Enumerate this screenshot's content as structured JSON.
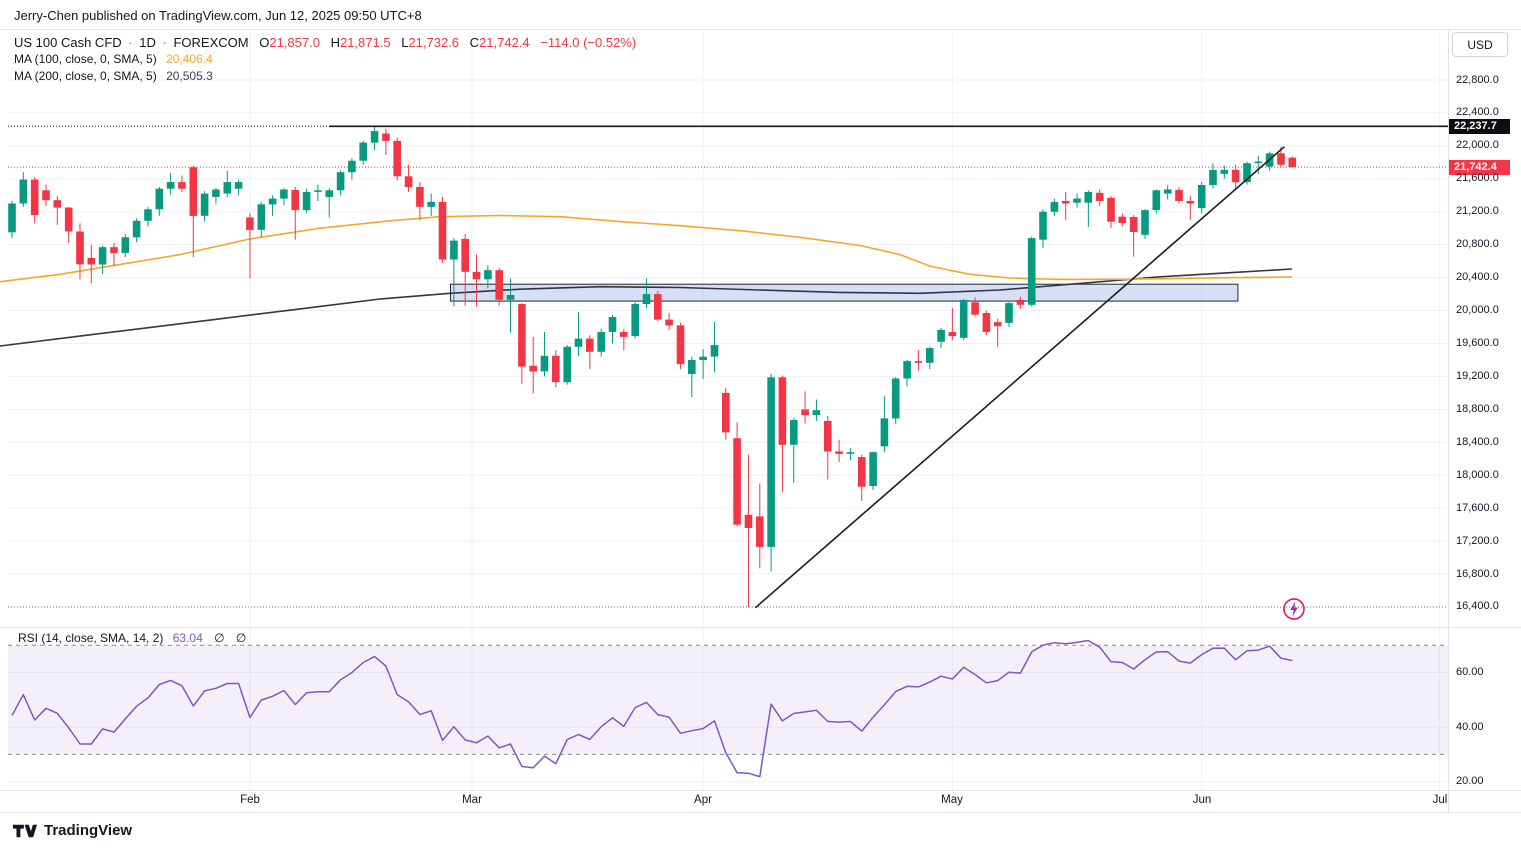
{
  "header": {
    "text": "Jerry-Chen published on TradingView.com, Jun 12, 2025 09:50 UTC+8"
  },
  "legend": {
    "symbol": "US 100 Cash CFD",
    "interval": "1D",
    "exchange": "FOREXCOM",
    "separator": "·",
    "ohlc": {
      "o_label": "O",
      "o": "21,857.0",
      "h_label": "H",
      "h": "21,871.5",
      "l_label": "L",
      "l": "21,732.6",
      "c_label": "C",
      "c": "21,742.4",
      "change": "−114.0 (−0.52%)"
    },
    "ma100_label": "MA (100, close, 0, SMA, 5)",
    "ma100_value": "20,406.4",
    "ma200_label": "MA (200, close, 0, SMA, 5)",
    "ma200_value": "20,505.3"
  },
  "currency_button": {
    "label": "USD"
  },
  "price_axis": {
    "ticks": [
      {
        "label": "22,800.0",
        "value": 22800
      },
      {
        "label": "22,400.0",
        "value": 22400
      },
      {
        "label": "22,000.0",
        "value": 22000
      },
      {
        "label": "21,600.0",
        "value": 21600
      },
      {
        "label": "21,200.0",
        "value": 21200
      },
      {
        "label": "20,800.0",
        "value": 20800
      },
      {
        "label": "20,400.0",
        "value": 20400
      },
      {
        "label": "20,000.0",
        "value": 20000
      },
      {
        "label": "19,600.0",
        "value": 19600
      },
      {
        "label": "19,200.0",
        "value": 19200
      },
      {
        "label": "18,800.0",
        "value": 18800
      },
      {
        "label": "18,400.0",
        "value": 18400
      },
      {
        "label": "18,000.0",
        "value": 18000
      },
      {
        "label": "17,600.0",
        "value": 17600
      },
      {
        "label": "17,200.0",
        "value": 17200
      },
      {
        "label": "16,800.0",
        "value": 16800
      },
      {
        "label": "16,400.0",
        "value": 16400
      }
    ],
    "high_badge": {
      "label": "22,237.7",
      "value": 22237.7,
      "color": "#0c0d12"
    },
    "last_badge": {
      "label": "21,742.4",
      "value": 21742.4,
      "color": "#f23645"
    }
  },
  "rsi_panel": {
    "legend": "RSI (14, close, SMA, 14, 2)",
    "value": "63.04",
    "null1": "∅",
    "null2": "∅",
    "ticks": [
      {
        "label": "60.00",
        "value": 60
      },
      {
        "label": "40.00",
        "value": 40
      },
      {
        "label": "20.00",
        "value": 20
      }
    ],
    "upper_band": 70,
    "lower_band": 30
  },
  "time_axis": {
    "months": [
      {
        "label": "Feb",
        "index": 21
      },
      {
        "label": "Mar",
        "index": 40.6
      },
      {
        "label": "Apr",
        "index": 61
      },
      {
        "label": "May",
        "index": 83
      },
      {
        "label": "Jun",
        "index": 105
      },
      {
        "label": "Jul",
        "index": 126
      }
    ]
  },
  "footer": {
    "logo_text": "TradingView"
  },
  "colors": {
    "up": "#089981",
    "down": "#f23645",
    "ma100": "#f7a62b",
    "ma200": "#33363f",
    "grid": "#eef1f6",
    "rsi_line": "#7e57c2",
    "rsi_band_fill": "rgba(126,87,194,0.09)",
    "rsi_band_edge": "#8a8e9b",
    "box_fill": "rgba(110,140,220,0.28)",
    "box_edge": "#22262f",
    "trend": "#1c1c1c",
    "last_line": "#f23645",
    "high_line": "#131722",
    "low_line": "#787b86",
    "zap": "#d81b60"
  },
  "chart_data": {
    "type": "candlestick",
    "title": "US 100 Cash CFD 1D FOREXCOM",
    "ylabel": "USD",
    "ylim": [
      16200,
      22900
    ],
    "x_range": "Jan 2 2025 - Jun 12 2025, daily",
    "candles": [
      [
        20950,
        21330,
        20880,
        21300
      ],
      [
        21300,
        21680,
        21260,
        21590
      ],
      [
        21590,
        21620,
        21060,
        21160
      ],
      [
        21460,
        21530,
        21270,
        21340
      ],
      [
        21340,
        21390,
        21040,
        21250
      ],
      [
        21250,
        21260,
        20820,
        20960
      ],
      [
        20960,
        21060,
        20380,
        20560
      ],
      [
        20640,
        20800,
        20330,
        20560
      ],
      [
        20560,
        20790,
        20440,
        20770
      ],
      [
        20770,
        20820,
        20540,
        20700
      ],
      [
        20700,
        20930,
        20650,
        20890
      ],
      [
        20890,
        21120,
        20830,
        21090
      ],
      [
        21090,
        21260,
        21020,
        21230
      ],
      [
        21230,
        21500,
        21150,
        21480
      ],
      [
        21480,
        21670,
        21410,
        21560
      ],
      [
        21560,
        21640,
        21440,
        21480
      ],
      [
        21740,
        21760,
        20650,
        21150
      ],
      [
        21150,
        21450,
        21080,
        21420
      ],
      [
        21380,
        21490,
        21300,
        21470
      ],
      [
        21420,
        21700,
        21380,
        21560
      ],
      [
        21480,
        21590,
        21400,
        21560
      ],
      [
        21130,
        21180,
        20390,
        20980
      ],
      [
        20980,
        21320,
        20890,
        21290
      ],
      [
        21290,
        21400,
        21150,
        21360
      ],
      [
        21360,
        21490,
        21280,
        21470
      ],
      [
        21465,
        21500,
        20860,
        21220
      ],
      [
        21220,
        21480,
        21190,
        21440
      ],
      [
        21440,
        21530,
        21330,
        21460
      ],
      [
        21380,
        21490,
        21130,
        21460
      ],
      [
        21460,
        21700,
        21400,
        21680
      ],
      [
        21680,
        21850,
        21590,
        21820
      ],
      [
        21820,
        22060,
        21770,
        22040
      ],
      [
        22040,
        22237.7,
        21950,
        22180
      ],
      [
        22150,
        22210,
        21890,
        22060
      ],
      [
        22060,
        22100,
        21580,
        21630
      ],
      [
        21630,
        21770,
        21440,
        21500
      ],
      [
        21500,
        21560,
        21100,
        21260
      ],
      [
        21260,
        21420,
        21150,
        21320
      ],
      [
        21320,
        21380,
        20580,
        20620
      ],
      [
        20620,
        20880,
        20050,
        20850
      ],
      [
        20870,
        20930,
        20060,
        20470
      ],
      [
        20470,
        20680,
        20050,
        20380
      ],
      [
        20380,
        20550,
        20270,
        20490
      ],
      [
        20490,
        20520,
        20060,
        20130
      ],
      [
        20130,
        20390,
        19730,
        20190
      ],
      [
        20080,
        20090,
        19110,
        19320
      ],
      [
        19330,
        19680,
        18990,
        19260
      ],
      [
        19260,
        19740,
        19200,
        19450
      ],
      [
        19450,
        19520,
        19070,
        19130
      ],
      [
        19130,
        19580,
        19100,
        19560
      ],
      [
        19560,
        19980,
        19450,
        19660
      ],
      [
        19660,
        19700,
        19290,
        19500
      ],
      [
        19500,
        19780,
        19440,
        19740
      ],
      [
        19740,
        19950,
        19600,
        19920
      ],
      [
        19740,
        19780,
        19520,
        19680
      ],
      [
        19690,
        20100,
        19660,
        20080
      ],
      [
        20080,
        20390,
        20030,
        20200
      ],
      [
        20200,
        20240,
        19870,
        19890
      ],
      [
        19890,
        19970,
        19760,
        19820
      ],
      [
        19820,
        19850,
        19290,
        19350
      ],
      [
        19230,
        19440,
        18950,
        19400
      ],
      [
        19400,
        19530,
        19170,
        19440
      ],
      [
        19440,
        19860,
        19250,
        19580
      ],
      [
        19000,
        19060,
        18430,
        18520
      ],
      [
        18450,
        18640,
        17380,
        17400
      ],
      [
        17520,
        18250,
        16400,
        17360
      ],
      [
        17500,
        17900,
        16870,
        17130
      ],
      [
        17130,
        19230,
        16830,
        19190
      ],
      [
        19190,
        19210,
        17800,
        18370
      ],
      [
        18370,
        18700,
        17910,
        18670
      ],
      [
        18800,
        19020,
        18630,
        18730
      ],
      [
        18730,
        18920,
        18660,
        18790
      ],
      [
        18660,
        18720,
        17950,
        18290
      ],
      [
        18290,
        18430,
        18160,
        18260
      ],
      [
        18260,
        18330,
        18180,
        18280
      ],
      [
        18220,
        18250,
        17690,
        17860
      ],
      [
        17870,
        18290,
        17820,
        18280
      ],
      [
        18350,
        18960,
        18280,
        18690
      ],
      [
        18690,
        19190,
        18620,
        19175
      ],
      [
        19175,
        19400,
        19080,
        19386
      ],
      [
        19386,
        19520,
        19270,
        19365
      ],
      [
        19365,
        19560,
        19290,
        19544
      ],
      [
        19620,
        19790,
        19540,
        19765
      ],
      [
        19740,
        20030,
        19640,
        19690
      ],
      [
        19670,
        20140,
        19640,
        20130
      ],
      [
        20100,
        20160,
        19930,
        19950
      ],
      [
        19970,
        20000,
        19700,
        19740
      ],
      [
        19860,
        19900,
        19560,
        19810
      ],
      [
        19850,
        20100,
        19800,
        20090
      ],
      [
        20130,
        20170,
        20020,
        20070
      ],
      [
        20070,
        20900,
        20050,
        20880
      ],
      [
        20860,
        21230,
        20760,
        21200
      ],
      [
        21200,
        21360,
        21150,
        21320
      ],
      [
        21330,
        21440,
        21100,
        21300
      ],
      [
        21310,
        21420,
        21250,
        21360
      ],
      [
        21310,
        21460,
        21015,
        21440
      ],
      [
        21430,
        21470,
        21270,
        21330
      ],
      [
        21370,
        21390,
        21000,
        21080
      ],
      [
        21140,
        21180,
        21020,
        21064
      ],
      [
        21136,
        21160,
        20655,
        20954
      ],
      [
        20920,
        21230,
        20870,
        21220
      ],
      [
        21220,
        21470,
        21180,
        21460
      ],
      [
        21420,
        21520,
        21350,
        21470
      ],
      [
        21465,
        21500,
        21300,
        21330
      ],
      [
        21330,
        21390,
        21100,
        21300
      ],
      [
        21245,
        21560,
        21180,
        21525
      ],
      [
        21525,
        21790,
        21480,
        21707
      ],
      [
        21660,
        21760,
        21600,
        21710
      ],
      [
        21710,
        21770,
        21480,
        21560
      ],
      [
        21560,
        21810,
        21530,
        21790
      ],
      [
        21790,
        21880,
        21660,
        21810
      ],
      [
        21750,
        21930,
        21700,
        21910
      ],
      [
        21910,
        21990,
        21740,
        21770
      ],
      [
        21857,
        21871.5,
        21732.6,
        21742.4
      ]
    ],
    "ma100_points": [
      [
        0,
        20350
      ],
      [
        60,
        20440
      ],
      [
        120,
        20560
      ],
      [
        180,
        20680
      ],
      [
        250,
        20870
      ],
      [
        320,
        21000
      ],
      [
        390,
        21090
      ],
      [
        440,
        21140
      ],
      [
        500,
        21155
      ],
      [
        560,
        21140
      ],
      [
        620,
        21080
      ],
      [
        680,
        21030
      ],
      [
        740,
        20970
      ],
      [
        800,
        20890
      ],
      [
        860,
        20790
      ],
      [
        900,
        20680
      ],
      [
        930,
        20540
      ],
      [
        970,
        20440
      ],
      [
        1010,
        20395
      ],
      [
        1060,
        20378
      ],
      [
        1120,
        20380
      ],
      [
        1180,
        20390
      ],
      [
        1240,
        20400
      ],
      [
        1292,
        20406
      ]
    ],
    "ma200_points": [
      [
        0,
        19570
      ],
      [
        100,
        19720
      ],
      [
        200,
        19870
      ],
      [
        300,
        20020
      ],
      [
        380,
        20140
      ],
      [
        450,
        20210
      ],
      [
        520,
        20260
      ],
      [
        600,
        20290
      ],
      [
        680,
        20280
      ],
      [
        760,
        20250
      ],
      [
        840,
        20220
      ],
      [
        920,
        20210
      ],
      [
        1000,
        20250
      ],
      [
        1080,
        20330
      ],
      [
        1160,
        20410
      ],
      [
        1230,
        20460
      ],
      [
        1292,
        20505
      ]
    ],
    "support_box": {
      "i1": 38.7,
      "i2": 108.2,
      "p_top": 20320,
      "p_bottom": 20115
    },
    "trendline": {
      "i1": 65.6,
      "p1": 16390,
      "i2": 112.3,
      "p2": 21990
    },
    "high_line": {
      "price": 22237.7,
      "solid_from_index": 28
    },
    "last_price_line": 21742.4,
    "low_dotted_line": 16400,
    "rsi_seed": [
      21560,
      21640,
      21400,
      21450,
      21520,
      21600,
      21350,
      21200,
      21300,
      21450,
      21550,
      21650,
      21500,
      21400,
      21100
    ],
    "rsi_period": 14,
    "rsi_last": 63.04
  }
}
